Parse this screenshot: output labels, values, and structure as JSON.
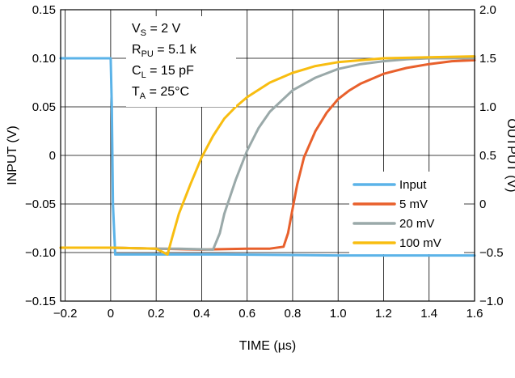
{
  "chart_data": {
    "type": "line",
    "xlabel": "TIME (µs)",
    "ylabel_left": "INPUT (V)",
    "ylabel_right": "OUTPUT (V)",
    "x_range": [
      -0.22,
      1.6
    ],
    "y_left_range": [
      -0.15,
      0.15
    ],
    "y_right_range": [
      -1.0,
      2.0
    ],
    "x_ticks": [
      "−0.2",
      "0",
      "0.2",
      "0.4",
      "0.6",
      "0.8",
      "1.0",
      "1.2",
      "1.4",
      "1.6"
    ],
    "x_tick_values": [
      -0.2,
      0,
      0.2,
      0.4,
      0.6,
      0.8,
      1.0,
      1.2,
      1.4,
      1.6
    ],
    "y_left_ticks": [
      "0.15",
      "0.10",
      "0.05",
      "0",
      "−0.05",
      "−0.10",
      "−0.15"
    ],
    "y_left_tick_values": [
      0.15,
      0.1,
      0.05,
      0,
      -0.05,
      -0.1,
      -0.15
    ],
    "y_right_ticks": [
      "2.0",
      "1.5",
      "1.0",
      "0.5",
      "0",
      "−0.5",
      "−1.0"
    ],
    "y_right_tick_values": [
      2.0,
      1.5,
      1.0,
      0.5,
      0,
      -0.5,
      -1.0
    ],
    "grid": true,
    "legend_position": "center-right",
    "conditions": [
      {
        "main": "V",
        "sub": "S",
        "rest": " = 2 V"
      },
      {
        "main": "R",
        "sub": "PU",
        "rest": " = 5.1 k"
      },
      {
        "main": "C",
        "sub": "L",
        "rest": " = 15 pF"
      },
      {
        "main": "T",
        "sub": "A",
        "rest": " = 25°C"
      }
    ],
    "series": [
      {
        "name": "Input",
        "color": "#5bb3e8",
        "axis": "left",
        "x": [
          -0.22,
          0,
          0.005,
          0.01,
          0.02,
          0.1,
          0.5,
          1.0,
          1.6
        ],
        "y": [
          0.1,
          0.1,
          0.05,
          -0.05,
          -0.102,
          -0.102,
          -0.102,
          -0.103,
          -0.103
        ]
      },
      {
        "name": "5 mV",
        "color": "#e8602c",
        "axis": "right",
        "x": [
          -0.22,
          0.0,
          0.4,
          0.6,
          0.7,
          0.76,
          0.78,
          0.8,
          0.82,
          0.85,
          0.9,
          0.95,
          1.0,
          1.05,
          1.1,
          1.2,
          1.3,
          1.4,
          1.5,
          1.6
        ],
        "y": [
          -0.45,
          -0.45,
          -0.47,
          -0.46,
          -0.46,
          -0.44,
          -0.3,
          -0.05,
          0.2,
          0.48,
          0.75,
          0.94,
          1.08,
          1.17,
          1.24,
          1.34,
          1.4,
          1.44,
          1.47,
          1.48
        ]
      },
      {
        "name": "20 mV",
        "color": "#9aa9a9",
        "axis": "right",
        "x": [
          -0.22,
          0.0,
          0.2,
          0.3,
          0.45,
          0.48,
          0.5,
          0.55,
          0.6,
          0.65,
          0.7,
          0.8,
          0.9,
          1.0,
          1.1,
          1.2,
          1.3,
          1.4,
          1.5,
          1.6
        ],
        "y": [
          -0.45,
          -0.45,
          -0.46,
          -0.46,
          -0.47,
          -0.3,
          -0.1,
          0.25,
          0.55,
          0.78,
          0.95,
          1.17,
          1.3,
          1.39,
          1.44,
          1.47,
          1.49,
          1.5,
          1.5,
          1.5
        ]
      },
      {
        "name": "100 mV",
        "color": "#f8bd10",
        "axis": "right",
        "x": [
          -0.22,
          0.0,
          0.2,
          0.25,
          0.27,
          0.3,
          0.35,
          0.4,
          0.45,
          0.5,
          0.55,
          0.6,
          0.7,
          0.8,
          0.9,
          1.0,
          1.2,
          1.4,
          1.6
        ],
        "y": [
          -0.45,
          -0.45,
          -0.46,
          -0.52,
          -0.35,
          -0.1,
          0.2,
          0.48,
          0.7,
          0.88,
          1.0,
          1.1,
          1.25,
          1.35,
          1.42,
          1.46,
          1.5,
          1.51,
          1.52
        ]
      }
    ]
  }
}
